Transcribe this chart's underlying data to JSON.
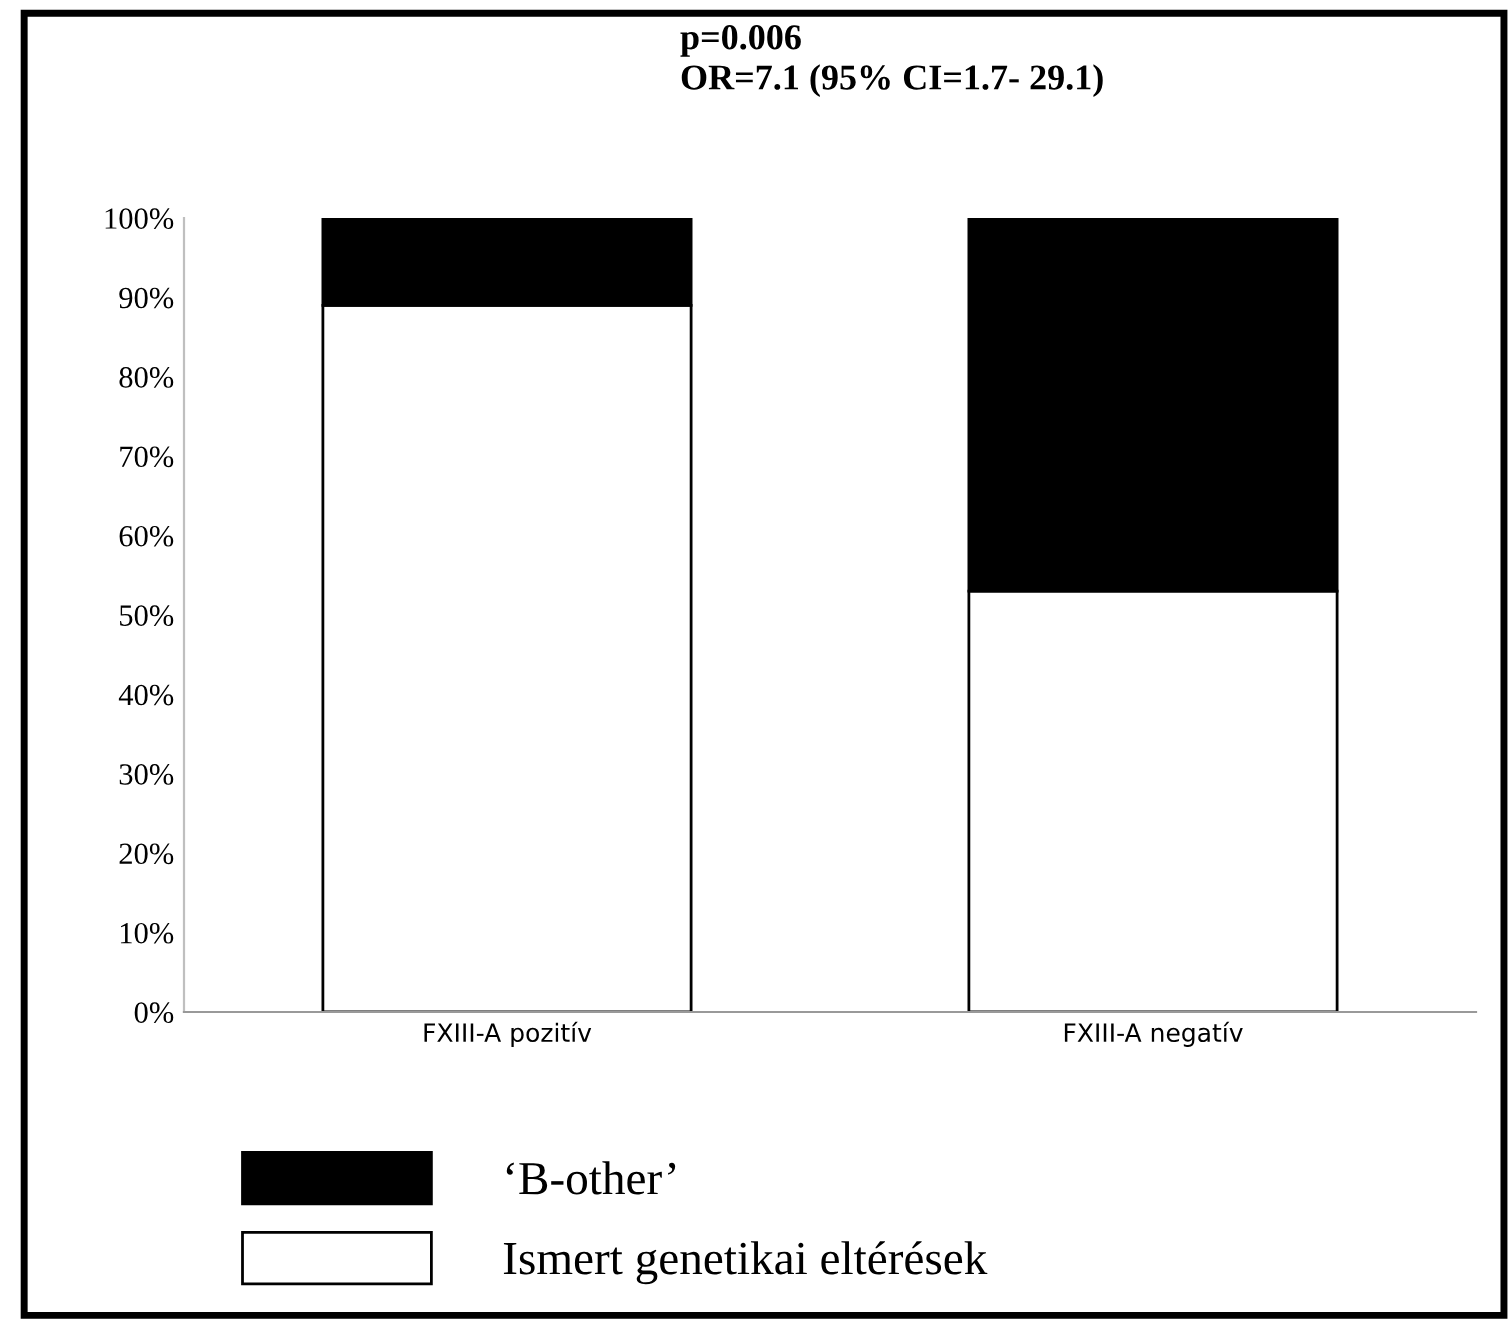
{
  "chart_data": {
    "type": "bar",
    "stacked": true,
    "title": "p=0.006\nOR=7.1 (95% CI=1.7- 29.1)",
    "categories": [
      "FXIII-A pozitív",
      "FXIII-A negatív"
    ],
    "series": [
      {
        "name": "Ismert genetikai eltérések",
        "color": "#ffffff",
        "values": [
          89,
          53
        ]
      },
      {
        "name": "‘B-other’",
        "color": "#000000",
        "values": [
          11,
          47
        ]
      }
    ],
    "ylim": [
      0,
      100
    ],
    "yticks": [
      {
        "value": 0,
        "label": "0%"
      },
      {
        "value": 10,
        "label": "10%"
      },
      {
        "value": 20,
        "label": "20%"
      },
      {
        "value": 30,
        "label": "30%"
      },
      {
        "value": 40,
        "label": "40%"
      },
      {
        "value": 50,
        "label": "50%"
      },
      {
        "value": 60,
        "label": "60%"
      },
      {
        "value": 70,
        "label": "70%"
      },
      {
        "value": 80,
        "label": "80%"
      },
      {
        "value": 90,
        "label": "90%"
      },
      {
        "value": 100,
        "label": "100%"
      }
    ],
    "grid": false,
    "legend": "bottom"
  }
}
